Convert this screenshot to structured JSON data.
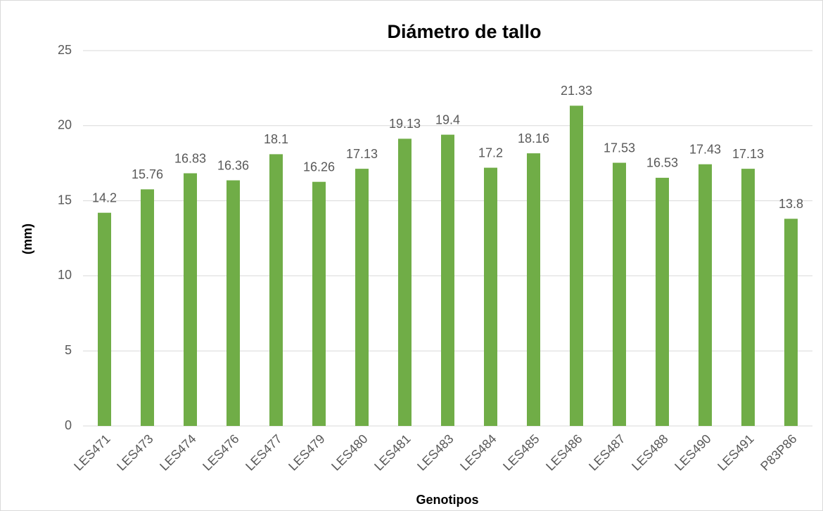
{
  "chart_data": {
    "type": "bar",
    "title": "Diámetro de tallo",
    "x_label": "Genotipos",
    "y_label": "(mm)",
    "categories": [
      "LES471",
      "LES473",
      "LES474",
      "LES476",
      "LES477",
      "LES479",
      "LES480",
      "LES481",
      "LES483",
      "LES484",
      "LES485",
      "LES486",
      "LES487",
      "LES488",
      "LES490",
      "LES491",
      "P83P86"
    ],
    "values": [
      14.2,
      15.76,
      16.83,
      16.36,
      18.1,
      16.26,
      17.13,
      19.13,
      19.4,
      17.2,
      18.16,
      21.33,
      17.53,
      16.53,
      17.43,
      17.13,
      13.8
    ],
    "color": "#70ad47",
    "ylim": [
      0,
      25
    ],
    "yticks": [
      0,
      5,
      10,
      15,
      20,
      25
    ],
    "grid": true
  }
}
